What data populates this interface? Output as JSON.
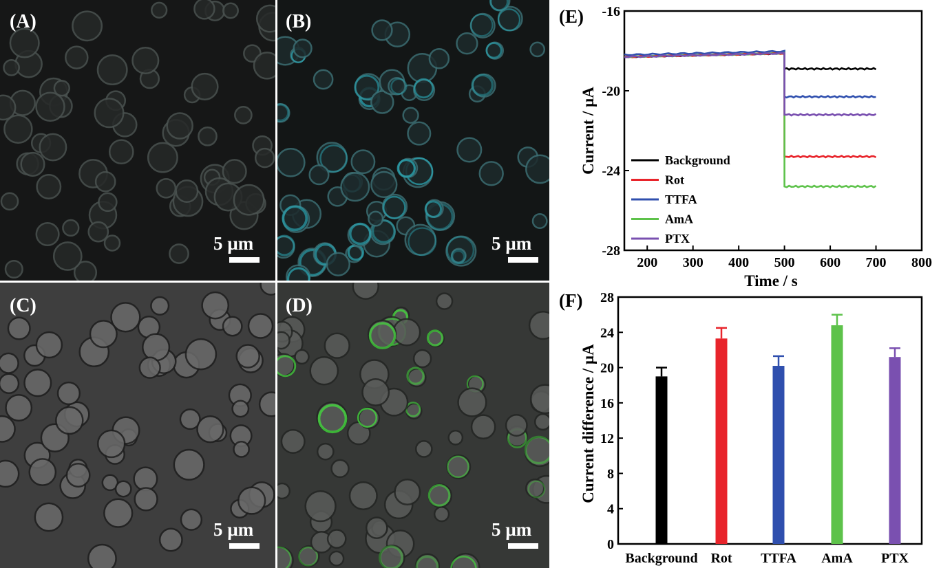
{
  "panels": [
    {
      "label": "(A)",
      "scale": "5 µm",
      "tint": "#7c8a88"
    },
    {
      "label": "(B)",
      "scale": "5 µm",
      "tint": "#2fa8b5"
    },
    {
      "label": "(C)",
      "scale": "5 µm",
      "tint": "#8a8a8a"
    },
    {
      "label": "(D)",
      "scale": "5 µm",
      "tint": "#3ed63a"
    }
  ],
  "chart_data": [
    {
      "type": "line",
      "panel_label": "(E)",
      "xlabel": "Time / s",
      "ylabel": "Current / µA",
      "xlim": [
        150,
        800
      ],
      "ylim": [
        -28,
        -16
      ],
      "xticks": [
        200,
        300,
        400,
        500,
        600,
        700,
        800
      ],
      "yticks": [
        -16,
        -20,
        -24,
        -28
      ],
      "legend_position": "bottom-left",
      "step_time": 500,
      "series": [
        {
          "name": "Background",
          "color": "#000000",
          "before": -18.3,
          "after": -18.9
        },
        {
          "name": "Rot",
          "color": "#e8242b",
          "before": -18.3,
          "after": -23.3
        },
        {
          "name": "TTFA",
          "color": "#2f4fae",
          "before": -18.2,
          "after": -20.3
        },
        {
          "name": "AmA",
          "color": "#5dc24a",
          "before": -18.3,
          "after": -24.8
        },
        {
          "name": "PTX",
          "color": "#7a50b0",
          "before": -18.3,
          "after": -21.2
        }
      ]
    },
    {
      "type": "bar",
      "panel_label": "(F)",
      "xlabel": "",
      "ylabel": "Current difference / µA",
      "ylim": [
        0,
        28
      ],
      "yticks": [
        0,
        4,
        8,
        12,
        16,
        20,
        24,
        28
      ],
      "categories": [
        "Background",
        "Rot",
        "TTFA",
        "AmA",
        "PTX"
      ],
      "values": [
        19.0,
        23.3,
        20.2,
        24.8,
        21.2
      ],
      "errors": [
        1.0,
        1.2,
        1.1,
        1.2,
        1.0
      ],
      "colors": [
        "#000000",
        "#e8242b",
        "#2f4fae",
        "#5dc24a",
        "#7a50b0"
      ]
    }
  ]
}
